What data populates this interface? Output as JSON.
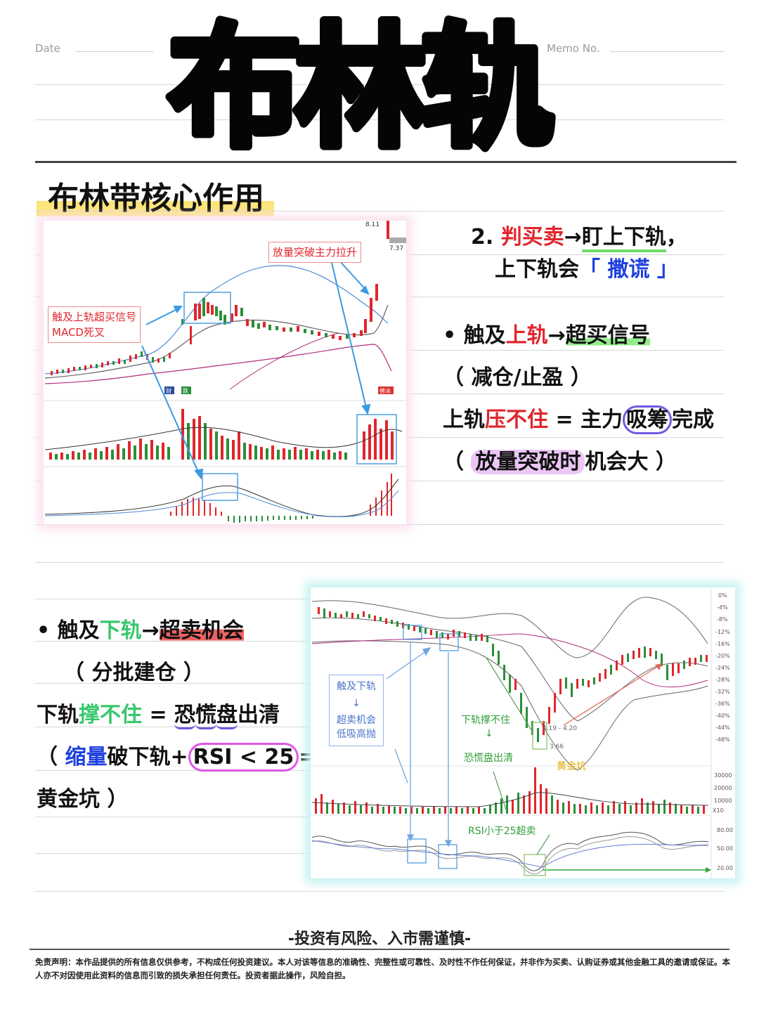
{
  "header": {
    "date_label": "Date",
    "memo_label": "Memo No."
  },
  "title": "布林轨",
  "section_title": "布林带核心作用",
  "right_block": {
    "line1_num": "2. ",
    "line1_red": "判买卖",
    "line1_arrow": "→",
    "line1_green": "盯上下轨",
    "line1_end": "，",
    "line2_pre": "上下轨会",
    "line2_blue": "「 撒谎 」",
    "bullet1_pre": "• 触及",
    "bullet1_red": "上轨",
    "bullet1_arrow": "→",
    "bullet1_green": "超买信号",
    "paren1": "（ 减仓/止盈 ）",
    "line5_a": "上轨",
    "line5_red": "压不住",
    "line5_b": " = 主力",
    "line5_circle": "吸筹",
    "line5_c": "完成",
    "line6_open": "（ ",
    "line6_hl": "放量突破时",
    "line6_rest": "机会大 ）"
  },
  "left_block": {
    "bullet_pre": "•  触及",
    "bullet_green": "下轨",
    "bullet_arrow": "→",
    "bullet_red": "超卖机会",
    "paren": "（ 分批建仓 ）",
    "line3_a": "下轨",
    "line3_green": "撑不住",
    "line3_b": " = ",
    "line3_u1": "恐",
    "line3_u2": "慌",
    "line3_u3": "盘",
    "line3_c": "出清",
    "line4_open": "（ ",
    "line4_blue": "缩量",
    "line4_mid": "破下轨+",
    "line4_circle": "RSI < 25",
    "line4_end": "=",
    "line5": "黄金坑 ）"
  },
  "chart1": {
    "anno_top": "放量突破主力拉升",
    "anno_left_1": "触及上轨超买信号",
    "anno_left_2": "MACD死叉",
    "price_high": "8.11",
    "price_low": "7.37",
    "tag_1": "财",
    "tag_2": "跌",
    "tag_3": "替冰"
  },
  "chart2": {
    "anno_left_1": "触及下轨",
    "anno_left_arrow": "↓",
    "anno_left_2": "超卖机会",
    "anno_left_3": "低吸高抛",
    "label_break_1": "下轨撑不住",
    "label_break_arrow": "↓",
    "label_break_2": "恐慌盘出清",
    "label_gold": "黄金坑",
    "label_rsi": "RSI小于25超卖",
    "date_range": "4.19 - 4.20",
    "low_price": "3.66",
    "pct_ticks": [
      "0%",
      "-4%",
      "-8%",
      "-12%",
      "-16%",
      "-20%",
      "-24%",
      "-28%",
      "-32%",
      "-36%",
      "-40%",
      "-44%",
      "-48%"
    ],
    "vol_ticks": [
      "30000",
      "20000",
      "10000",
      "X10"
    ],
    "rsi_ticks": [
      "80.00",
      "50.00",
      "20.00"
    ]
  },
  "footer": {
    "slogan": "-投资有风险、入市需谨慎-",
    "disclaimer": "免责声明：本作品提供的所有信息仅供参考，不构成任何投资建议。本人对该等信息的准确性、完整性或可靠性、及时性不作任何保证，并非作为买卖、认购证券或其他金融工具的邀请或保证。本人亦不对因使用此资料的信息而引致的损失承担任何责任。投资者据此操作，风险自担。"
  },
  "colors": {
    "up": "#e0262d",
    "down": "#2a8f3a",
    "highlight_yellow": "#fde47a",
    "accent_blue": "#1e3fe0",
    "accent_green": "#38c76d"
  }
}
